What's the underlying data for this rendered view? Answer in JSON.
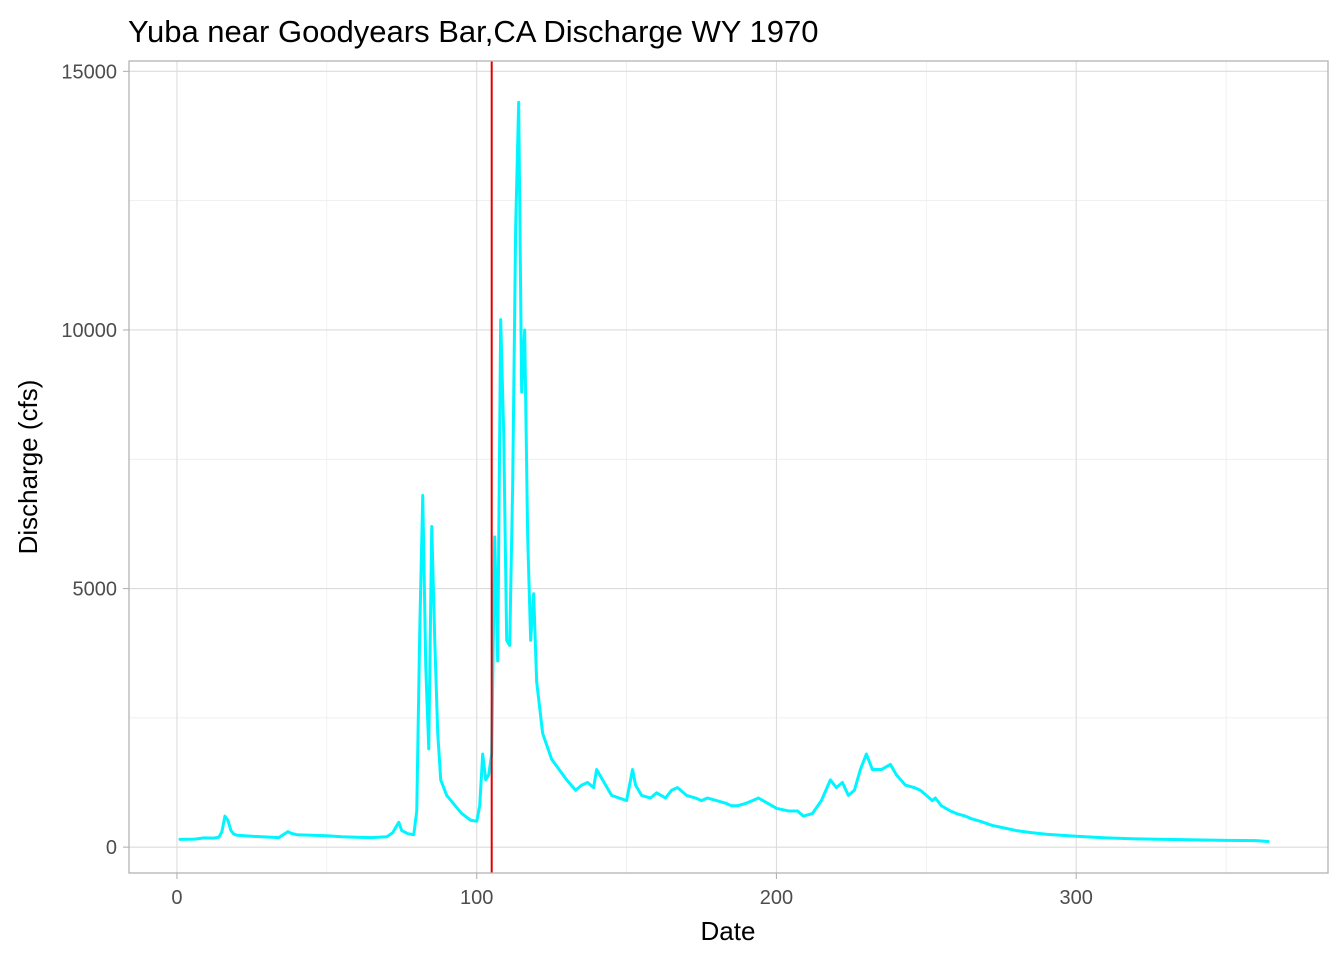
{
  "chart_data": {
    "type": "line",
    "title": "Yuba near Goodyears Bar,CA Discharge WY 1970",
    "xlabel": "Date",
    "ylabel": "Discharge (cfs)",
    "xlim": [
      -16,
      384
    ],
    "ylim": [
      -500,
      15200
    ],
    "x_ticks": [
      0,
      100,
      200,
      300
    ],
    "y_ticks": [
      0,
      5000,
      10000,
      15000
    ],
    "grid": true,
    "line_color": "#00f5ff",
    "vline": {
      "x": 105,
      "color": "#e00000"
    },
    "series": [
      {
        "points": [
          [
            1,
            150
          ],
          [
            6,
            155
          ],
          [
            9,
            180
          ],
          [
            12,
            175
          ],
          [
            14,
            190
          ],
          [
            15,
            300
          ],
          [
            16,
            600
          ],
          [
            17,
            520
          ],
          [
            18,
            320
          ],
          [
            19,
            250
          ],
          [
            20,
            230
          ],
          [
            25,
            210
          ],
          [
            30,
            195
          ],
          [
            34,
            185
          ],
          [
            36,
            260
          ],
          [
            37,
            300
          ],
          [
            38,
            270
          ],
          [
            40,
            240
          ],
          [
            45,
            230
          ],
          [
            50,
            220
          ],
          [
            55,
            200
          ],
          [
            60,
            190
          ],
          [
            65,
            185
          ],
          [
            70,
            200
          ],
          [
            72,
            280
          ],
          [
            74,
            480
          ],
          [
            75,
            320
          ],
          [
            77,
            260
          ],
          [
            79,
            240
          ],
          [
            80,
            700
          ],
          [
            81,
            4200
          ],
          [
            82,
            6800
          ],
          [
            83,
            3500
          ],
          [
            84,
            1900
          ],
          [
            85,
            6200
          ],
          [
            86,
            4000
          ],
          [
            87,
            2200
          ],
          [
            88,
            1300
          ],
          [
            90,
            1000
          ],
          [
            95,
            650
          ],
          [
            98,
            520
          ],
          [
            100,
            500
          ],
          [
            101,
            800
          ],
          [
            102,
            1800
          ],
          [
            103,
            1300
          ],
          [
            104,
            1400
          ],
          [
            105,
            1800
          ],
          [
            106,
            6000
          ],
          [
            107,
            3600
          ],
          [
            108,
            10200
          ],
          [
            109,
            8000
          ],
          [
            110,
            4000
          ],
          [
            111,
            3900
          ],
          [
            112,
            7000
          ],
          [
            113,
            12000
          ],
          [
            114,
            14400
          ],
          [
            115,
            8800
          ],
          [
            116,
            10000
          ],
          [
            117,
            6000
          ],
          [
            118,
            4000
          ],
          [
            119,
            4900
          ],
          [
            120,
            3200
          ],
          [
            122,
            2200
          ],
          [
            125,
            1700
          ],
          [
            130,
            1300
          ],
          [
            133,
            1100
          ],
          [
            135,
            1200
          ],
          [
            137,
            1250
          ],
          [
            139,
            1150
          ],
          [
            140,
            1500
          ],
          [
            142,
            1300
          ],
          [
            145,
            1000
          ],
          [
            150,
            900
          ],
          [
            151,
            1200
          ],
          [
            152,
            1500
          ],
          [
            153,
            1200
          ],
          [
            155,
            1000
          ],
          [
            158,
            950
          ],
          [
            160,
            1050
          ],
          [
            163,
            950
          ],
          [
            165,
            1100
          ],
          [
            167,
            1150
          ],
          [
            170,
            1000
          ],
          [
            173,
            950
          ],
          [
            175,
            900
          ],
          [
            177,
            950
          ],
          [
            180,
            900
          ],
          [
            183,
            850
          ],
          [
            185,
            800
          ],
          [
            187,
            800
          ],
          [
            190,
            850
          ],
          [
            192,
            900
          ],
          [
            194,
            950
          ],
          [
            197,
            850
          ],
          [
            200,
            750
          ],
          [
            204,
            700
          ],
          [
            207,
            700
          ],
          [
            209,
            600
          ],
          [
            212,
            650
          ],
          [
            215,
            900
          ],
          [
            218,
            1300
          ],
          [
            220,
            1150
          ],
          [
            222,
            1250
          ],
          [
            224,
            1000
          ],
          [
            226,
            1100
          ],
          [
            228,
            1500
          ],
          [
            230,
            1800
          ],
          [
            232,
            1500
          ],
          [
            235,
            1500
          ],
          [
            238,
            1600
          ],
          [
            240,
            1400
          ],
          [
            243,
            1200
          ],
          [
            246,
            1150
          ],
          [
            248,
            1100
          ],
          [
            250,
            1000
          ],
          [
            252,
            900
          ],
          [
            253,
            950
          ],
          [
            255,
            800
          ],
          [
            258,
            700
          ],
          [
            260,
            650
          ],
          [
            263,
            600
          ],
          [
            265,
            550
          ],
          [
            268,
            500
          ],
          [
            272,
            420
          ],
          [
            276,
            370
          ],
          [
            280,
            320
          ],
          [
            285,
            280
          ],
          [
            290,
            250
          ],
          [
            295,
            230
          ],
          [
            300,
            210
          ],
          [
            310,
            180
          ],
          [
            320,
            160
          ],
          [
            330,
            150
          ],
          [
            340,
            140
          ],
          [
            350,
            130
          ],
          [
            360,
            125
          ],
          [
            364,
            110
          ]
        ]
      }
    ]
  }
}
